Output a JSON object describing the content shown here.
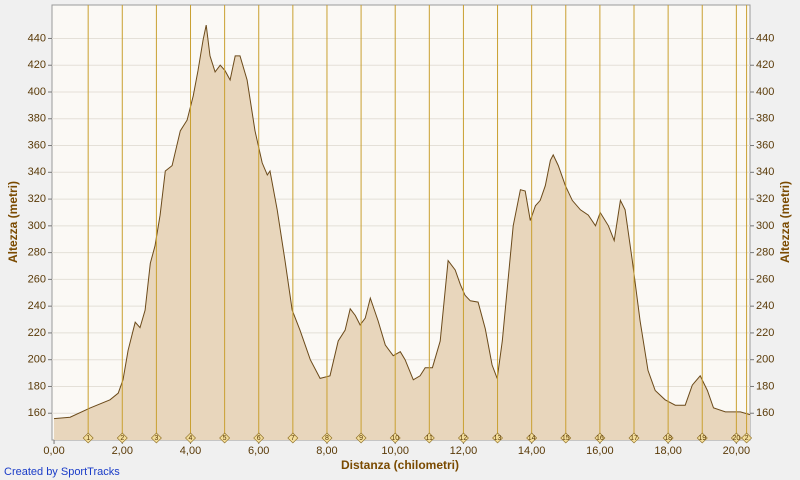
{
  "chart_data": {
    "type": "area",
    "ylabel": "Altezza (metri)",
    "xlabel": "Distanza (chilometri)",
    "credit": "Created by SportTracks",
    "color": "#e8d6bc",
    "line_color": "#6b4a1a",
    "marker_color": "#c9a030",
    "grid": true,
    "xlim": [
      -0.06,
      20.4
    ],
    "ylim": [
      140,
      465
    ],
    "xticks": [
      {
        "value": 0,
        "label": "0,00"
      },
      {
        "value": 2,
        "label": "2,00"
      },
      {
        "value": 4,
        "label": "4,00"
      },
      {
        "value": 6,
        "label": "6,00"
      },
      {
        "value": 8,
        "label": "8,00"
      },
      {
        "value": 10,
        "label": "10,00"
      },
      {
        "value": 12,
        "label": "12,00"
      },
      {
        "value": 14,
        "label": "14,00"
      },
      {
        "value": 16,
        "label": "16,00"
      },
      {
        "value": 18,
        "label": "18,00"
      },
      {
        "value": 20,
        "label": "20,00"
      }
    ],
    "yticks": [
      160,
      180,
      200,
      220,
      240,
      260,
      280,
      300,
      320,
      340,
      360,
      380,
      400,
      420,
      440
    ],
    "markers": [
      1,
      2,
      3,
      4,
      5,
      6,
      7,
      8,
      9,
      10,
      11,
      12,
      13,
      14,
      15,
      16,
      17,
      18,
      19,
      20,
      {
        "value": 20.3,
        "label": "2"
      }
    ],
    "x": [
      0,
      0.47,
      1.06,
      1.64,
      1.88,
      2.02,
      2.17,
      2.38,
      2.52,
      2.67,
      2.82,
      2.96,
      3.11,
      3.26,
      3.46,
      3.7,
      3.9,
      4.08,
      4.22,
      4.37,
      4.46,
      4.57,
      4.72,
      4.87,
      5.01,
      5.16,
      5.31,
      5.45,
      5.66,
      5.89,
      6.1,
      6.25,
      6.33,
      6.54,
      6.77,
      6.98,
      7.21,
      7.51,
      7.8,
      8.09,
      8.33,
      8.53,
      8.68,
      8.83,
      8.97,
      9.12,
      9.27,
      9.5,
      9.71,
      9.94,
      10.15,
      10.29,
      10.53,
      10.73,
      10.88,
      11.09,
      11.32,
      11.55,
      11.76,
      11.91,
      12.05,
      12.2,
      12.43,
      12.64,
      12.84,
      12.99,
      13.14,
      13.28,
      13.46,
      13.67,
      13.81,
      13.96,
      14.11,
      14.25,
      14.4,
      14.55,
      14.63,
      14.78,
      14.99,
      15.19,
      15.43,
      15.66,
      15.87,
      16.01,
      16.25,
      16.42,
      16.6,
      16.74,
      16.95,
      17.18,
      17.41,
      17.62,
      17.91,
      18.21,
      18.5,
      18.71,
      18.94,
      19.15,
      19.33,
      19.68,
      20.12,
      20.4
    ],
    "values": [
      156,
      157,
      164,
      170,
      175,
      185,
      207,
      228,
      224,
      237,
      272,
      285,
      308,
      341,
      345,
      371,
      379,
      397,
      416,
      439,
      450,
      427,
      415,
      420,
      416,
      409,
      427,
      427,
      409,
      371,
      347,
      338,
      341,
      312,
      274,
      237,
      222,
      200,
      186,
      188,
      214,
      222,
      238,
      233,
      226,
      231,
      246,
      229,
      211,
      203,
      206,
      200,
      185,
      188,
      194,
      194,
      214,
      274,
      267,
      256,
      248,
      244,
      243,
      223,
      196,
      186,
      214,
      252,
      300,
      327,
      326,
      304,
      315,
      319,
      330,
      349,
      353,
      345,
      330,
      319,
      312,
      308,
      300,
      310,
      300,
      289,
      319,
      312,
      274,
      229,
      192,
      177,
      170,
      166,
      166,
      181,
      188,
      177,
      164,
      161,
      161,
      159
    ]
  }
}
